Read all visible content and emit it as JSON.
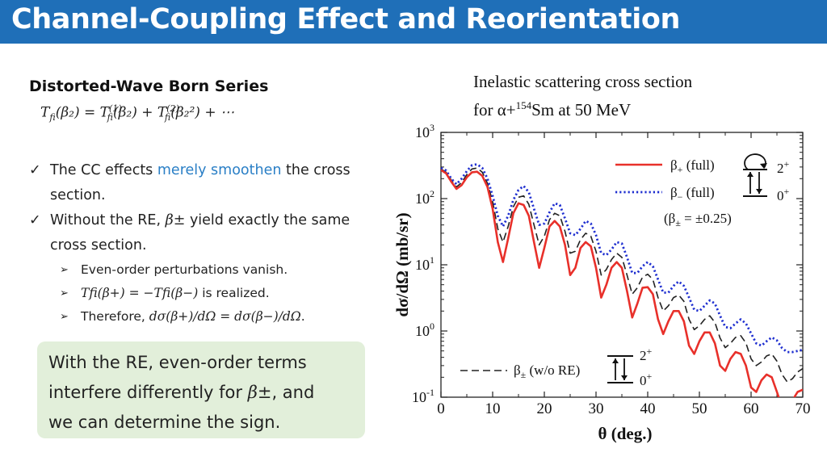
{
  "header": {
    "title": "Channel-Coupling Effect and Reorientation"
  },
  "left": {
    "subtitle": "Distorted-Wave Born Series",
    "equation": {
      "lhs": "T",
      "lhs_sub": "fi",
      "lhs_arg": "(β₂) = ",
      "t1": "T",
      "t1_sup": "(1)",
      "t1_sub": "fi",
      "t1_arg": "(β₂) + ",
      "t2": "T",
      "t2_sup": "(2)",
      "t2_sub": "fi",
      "t2_arg": "(β₂²) + ⋯"
    },
    "bullets": [
      {
        "check": "✓",
        "pre": "The CC effects ",
        "highlight": "merely smoothen",
        "post": " the cross section."
      },
      {
        "check": "✓",
        "pre": "Without the RE, ",
        "math": "β±",
        "post": " yield exactly the same cross section."
      }
    ],
    "subbullets": [
      {
        "arrow": "➢",
        "text": "Even-order perturbations vanish."
      },
      {
        "arrow": "➢",
        "math": "Tfi(β+) = −Tfi(β−)",
        "text": " is realized."
      },
      {
        "arrow": "➢",
        "pre": "Therefore, ",
        "math": "dσ(β+)/dΩ = dσ(β−)/dΩ",
        "post": "."
      }
    ],
    "callout": {
      "line1": "With the RE, even-order terms",
      "line2_pre": "interfere differently for ",
      "line2_math": "β±",
      "line2_post": ", and",
      "line3": "we can determine the sign."
    }
  },
  "chart_title": {
    "line1": "Inelastic scattering cross section",
    "line2_pre": "for α+",
    "line2_sup": "154",
    "line2_post": "Sm at 50 MeV"
  },
  "chart_data": {
    "type": "line",
    "xlabel": "θ (deg.)",
    "ylabel": "dσ/dΩ (mb/sr)",
    "xlim": [
      0,
      70
    ],
    "ylim": [
      0.1,
      1000
    ],
    "yscale": "log",
    "xticks": [
      "0",
      "10",
      "20",
      "30",
      "40",
      "50",
      "60",
      "70"
    ],
    "yticks": [
      {
        "base": "10",
        "exp": "-1",
        "value": 0.1
      },
      {
        "base": "10",
        "exp": "0",
        "value": 1
      },
      {
        "base": "10",
        "exp": "1",
        "value": 10
      },
      {
        "base": "10",
        "exp": "2",
        "value": 100
      },
      {
        "base": "10",
        "exp": "3",
        "value": 1000
      }
    ],
    "series": [
      {
        "name": "β+ (full)",
        "color": "#e8302a",
        "style": "solid",
        "x": [
          0,
          1,
          2,
          3,
          4,
          5,
          6,
          7,
          8,
          9,
          10,
          11,
          12,
          13,
          14,
          15,
          16,
          17,
          18,
          19,
          20,
          21,
          22,
          23,
          24,
          25,
          26,
          27,
          28,
          29,
          30,
          31,
          32,
          33,
          34,
          35,
          36,
          37,
          38,
          39,
          40,
          41,
          42,
          43,
          44,
          45,
          46,
          47,
          48,
          49,
          50,
          51,
          52,
          53,
          54,
          55,
          56,
          57,
          58,
          59,
          60,
          61,
          62,
          63,
          64,
          65,
          66,
          67,
          68,
          69,
          70
        ],
        "y": [
          270,
          240,
          180,
          140,
          160,
          210,
          250,
          255,
          220,
          150,
          70,
          22,
          11,
          25,
          60,
          85,
          80,
          55,
          22,
          9,
          18,
          38,
          46,
          38,
          20,
          7,
          9,
          18,
          22,
          19,
          9,
          3.2,
          5,
          9,
          11,
          9,
          4,
          1.6,
          2.6,
          4.5,
          4.6,
          3.6,
          1.5,
          0.9,
          1.4,
          2,
          2,
          1.4,
          0.6,
          0.45,
          0.7,
          0.95,
          0.95,
          0.65,
          0.3,
          0.25,
          0.38,
          0.48,
          0.45,
          0.3,
          0.14,
          0.12,
          0.18,
          0.22,
          0.2,
          0.12,
          0.07,
          0.06,
          0.09,
          0.12,
          0.13
        ]
      },
      {
        "name": "β− (full)",
        "color": "#1f2fd0",
        "style": "dotted",
        "x": [
          0,
          1,
          2,
          3,
          4,
          5,
          6,
          7,
          8,
          9,
          10,
          11,
          12,
          13,
          14,
          15,
          16,
          17,
          18,
          19,
          20,
          21,
          22,
          23,
          24,
          25,
          26,
          27,
          28,
          29,
          30,
          31,
          32,
          33,
          34,
          35,
          36,
          37,
          38,
          39,
          40,
          41,
          42,
          43,
          44,
          45,
          46,
          47,
          48,
          49,
          50,
          51,
          52,
          53,
          54,
          55,
          56,
          57,
          58,
          59,
          60,
          61,
          62,
          63,
          64,
          65,
          66,
          67,
          68,
          69,
          70
        ],
        "y": [
          290,
          265,
          200,
          165,
          200,
          260,
          320,
          330,
          290,
          200,
          110,
          55,
          38,
          55,
          95,
          135,
          155,
          125,
          70,
          40,
          42,
          62,
          85,
          80,
          50,
          30,
          28,
          35,
          46,
          42,
          28,
          15,
          14,
          17,
          22,
          21,
          13,
          7.5,
          7.5,
          9.5,
          11,
          9.5,
          6,
          3.8,
          3.8,
          4.8,
          5.6,
          4.8,
          3.2,
          2.1,
          2,
          2.4,
          2.9,
          2.6,
          1.7,
          1.15,
          1.1,
          1.3,
          1.5,
          1.3,
          0.92,
          0.65,
          0.6,
          0.7,
          0.8,
          0.72,
          0.55,
          0.48,
          0.48,
          0.5,
          0.52
        ]
      },
      {
        "name": "β± (w/o RE)",
        "color": "#222222",
        "style": "dashed",
        "x": [
          0,
          1,
          2,
          3,
          4,
          5,
          6,
          7,
          8,
          9,
          10,
          11,
          12,
          13,
          14,
          15,
          16,
          17,
          18,
          19,
          20,
          21,
          22,
          23,
          24,
          25,
          26,
          27,
          28,
          29,
          30,
          31,
          32,
          33,
          34,
          35,
          36,
          37,
          38,
          39,
          40,
          41,
          42,
          43,
          44,
          45,
          46,
          47,
          48,
          49,
          50,
          51,
          52,
          53,
          54,
          55,
          56,
          57,
          58,
          59,
          60,
          61,
          62,
          63,
          64,
          65,
          66,
          67,
          68,
          69,
          70
        ],
        "y": [
          280,
          250,
          190,
          150,
          175,
          230,
          280,
          290,
          250,
          170,
          90,
          35,
          22,
          38,
          75,
          105,
          110,
          82,
          40,
          20,
          27,
          48,
          60,
          55,
          32,
          15,
          16,
          24,
          30,
          27,
          16,
          7,
          8.5,
          12,
          15,
          13,
          7,
          3.6,
          4.5,
          6.5,
          7.2,
          6,
          3.2,
          2,
          2.4,
          3.2,
          3.5,
          2.8,
          1.5,
          1.05,
          1.2,
          1.5,
          1.7,
          1.35,
          0.78,
          0.56,
          0.65,
          0.8,
          0.85,
          0.66,
          0.38,
          0.3,
          0.34,
          0.42,
          0.45,
          0.35,
          0.22,
          0.17,
          0.19,
          0.24,
          0.27
        ]
      }
    ],
    "legend": [
      {
        "label_base": "β",
        "label_sub": "+",
        "label_post": " (full)",
        "series": 0
      },
      {
        "label_base": "β",
        "label_sub": "−",
        "label_post": " (full)",
        "series": 1
      },
      {
        "label_base": "(β",
        "label_sub": "±",
        "label_post": " = ±0.25)",
        "series": -1
      },
      {
        "label_base": "β",
        "label_sub": "±",
        "label_post": " (w/o RE)",
        "series": 2
      }
    ],
    "level_labels": {
      "upper": "2",
      "upper_sup": "+",
      "lower": "0",
      "lower_sup": "+"
    }
  }
}
